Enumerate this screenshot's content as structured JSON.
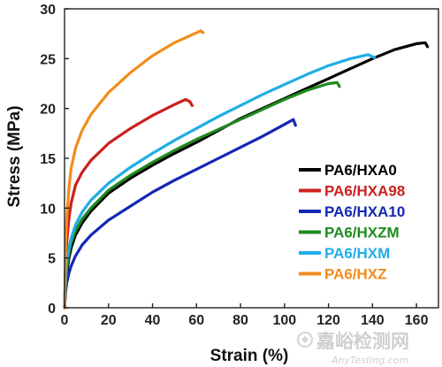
{
  "chart_data": {
    "type": "line",
    "title": "",
    "xlabel": "Strain (%)",
    "ylabel": "Stress (MPa)",
    "xlim": [
      0,
      170
    ],
    "ylim": [
      0,
      30
    ],
    "x_ticks": [
      "0",
      "20",
      "40",
      "60",
      "80",
      "100",
      "120",
      "140",
      "160"
    ],
    "y_ticks": [
      "0",
      "5",
      "10",
      "15",
      "20",
      "25",
      "30"
    ],
    "grid": false,
    "legend_position": "bottom-right",
    "series": [
      {
        "name": "PA6/HXA0",
        "color": "#000000",
        "points": [
          [
            0,
            0
          ],
          [
            0.5,
            2
          ],
          [
            1,
            3.5
          ],
          [
            2,
            5
          ],
          [
            3,
            6
          ],
          [
            5,
            7.3
          ],
          [
            8,
            8.5
          ],
          [
            12,
            9.7
          ],
          [
            20,
            11.5
          ],
          [
            30,
            13
          ],
          [
            40,
            14.3
          ],
          [
            50,
            15.5
          ],
          [
            60,
            16.6
          ],
          [
            70,
            17.8
          ],
          [
            80,
            19
          ],
          [
            90,
            20
          ],
          [
            100,
            21
          ],
          [
            110,
            22
          ],
          [
            120,
            23
          ],
          [
            130,
            24
          ],
          [
            140,
            25
          ],
          [
            150,
            25.9
          ],
          [
            160,
            26.5
          ],
          [
            164,
            26.6
          ],
          [
            165,
            26.2
          ]
        ]
      },
      {
        "name": "PA6/HXA98",
        "color": "#cc1f1f",
        "points": [
          [
            0,
            0
          ],
          [
            0.5,
            4
          ],
          [
            1,
            6.5
          ],
          [
            2,
            9
          ],
          [
            3,
            10.5
          ],
          [
            5,
            12.3
          ],
          [
            8,
            13.6
          ],
          [
            12,
            14.8
          ],
          [
            20,
            16.5
          ],
          [
            30,
            18
          ],
          [
            40,
            19.3
          ],
          [
            50,
            20.4
          ],
          [
            55,
            20.9
          ],
          [
            57,
            20.7
          ],
          [
            58,
            20.3
          ]
        ]
      },
      {
        "name": "PA6/HXA10",
        "color": "#1428b4",
        "points": [
          [
            0,
            0
          ],
          [
            0.5,
            1.5
          ],
          [
            1,
            2.5
          ],
          [
            2,
            3.5
          ],
          [
            3,
            4.2
          ],
          [
            5,
            5.2
          ],
          [
            8,
            6.3
          ],
          [
            12,
            7.3
          ],
          [
            20,
            8.8
          ],
          [
            30,
            10.2
          ],
          [
            40,
            11.6
          ],
          [
            50,
            12.8
          ],
          [
            60,
            13.9
          ],
          [
            70,
            15
          ],
          [
            80,
            16.1
          ],
          [
            90,
            17.2
          ],
          [
            100,
            18.4
          ],
          [
            104,
            18.9
          ],
          [
            105,
            18.3
          ]
        ]
      },
      {
        "name": "PA6/HXZM",
        "color": "#1f8a1f",
        "points": [
          [
            0,
            0
          ],
          [
            0.5,
            2.5
          ],
          [
            1,
            4
          ],
          [
            2,
            5.5
          ],
          [
            3,
            6.5
          ],
          [
            5,
            7.7
          ],
          [
            8,
            8.9
          ],
          [
            12,
            10
          ],
          [
            20,
            11.8
          ],
          [
            30,
            13.3
          ],
          [
            40,
            14.6
          ],
          [
            50,
            15.8
          ],
          [
            60,
            16.9
          ],
          [
            70,
            17.9
          ],
          [
            80,
            18.9
          ],
          [
            90,
            19.9
          ],
          [
            100,
            20.9
          ],
          [
            110,
            21.8
          ],
          [
            120,
            22.5
          ],
          [
            124,
            22.6
          ],
          [
            125,
            22.2
          ]
        ]
      },
      {
        "name": "PA6/HXM",
        "color": "#1faee6",
        "points": [
          [
            0,
            0
          ],
          [
            0.5,
            3
          ],
          [
            1,
            4.5
          ],
          [
            2,
            6
          ],
          [
            3,
            7
          ],
          [
            5,
            8.3
          ],
          [
            8,
            9.6
          ],
          [
            12,
            10.8
          ],
          [
            20,
            12.5
          ],
          [
            30,
            14.1
          ],
          [
            40,
            15.5
          ],
          [
            50,
            16.8
          ],
          [
            60,
            18
          ],
          [
            70,
            19.2
          ],
          [
            80,
            20.3
          ],
          [
            90,
            21.4
          ],
          [
            100,
            22.4
          ],
          [
            110,
            23.4
          ],
          [
            120,
            24.3
          ],
          [
            130,
            25
          ],
          [
            138,
            25.4
          ],
          [
            141,
            25.1
          ]
        ]
      },
      {
        "name": "PA6/HXZ",
        "color": "#f28c1c",
        "points": [
          [
            0,
            0
          ],
          [
            0.5,
            6
          ],
          [
            1,
            9
          ],
          [
            2,
            12
          ],
          [
            3,
            14
          ],
          [
            5,
            16
          ],
          [
            8,
            17.8
          ],
          [
            12,
            19.4
          ],
          [
            20,
            21.6
          ],
          [
            30,
            23.6
          ],
          [
            40,
            25.3
          ],
          [
            50,
            26.6
          ],
          [
            58,
            27.4
          ],
          [
            62,
            27.8
          ],
          [
            63,
            27.6
          ]
        ]
      }
    ]
  },
  "watermark": {
    "text_cn": "嘉峪检测网",
    "text_en": "AnyTesting.com"
  }
}
